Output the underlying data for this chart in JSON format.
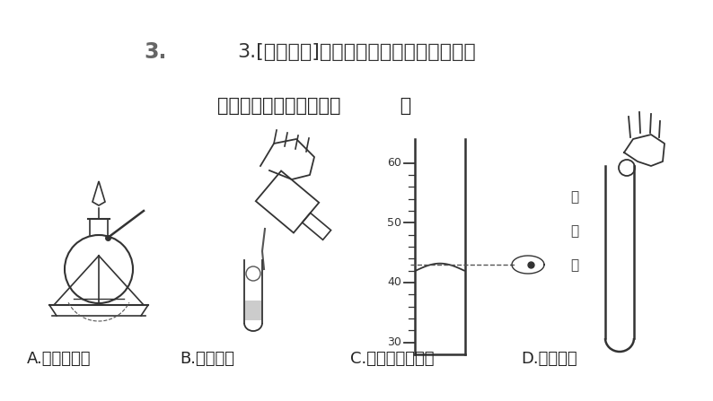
{
  "bg_color": "#ffffff",
  "title_line": "3.[孝感模拟]化学是以实验为基础的科学。",
  "subtitle": "下列实验操作正确的是（          ）",
  "label_a": "A.点燃酒精灯",
  "label_b": "B.倾倒液体",
  "label_c": "C.读取液体的体积",
  "label_d": "D.取用固体",
  "figsize": [
    7.94,
    4.47
  ],
  "dpi": 100
}
